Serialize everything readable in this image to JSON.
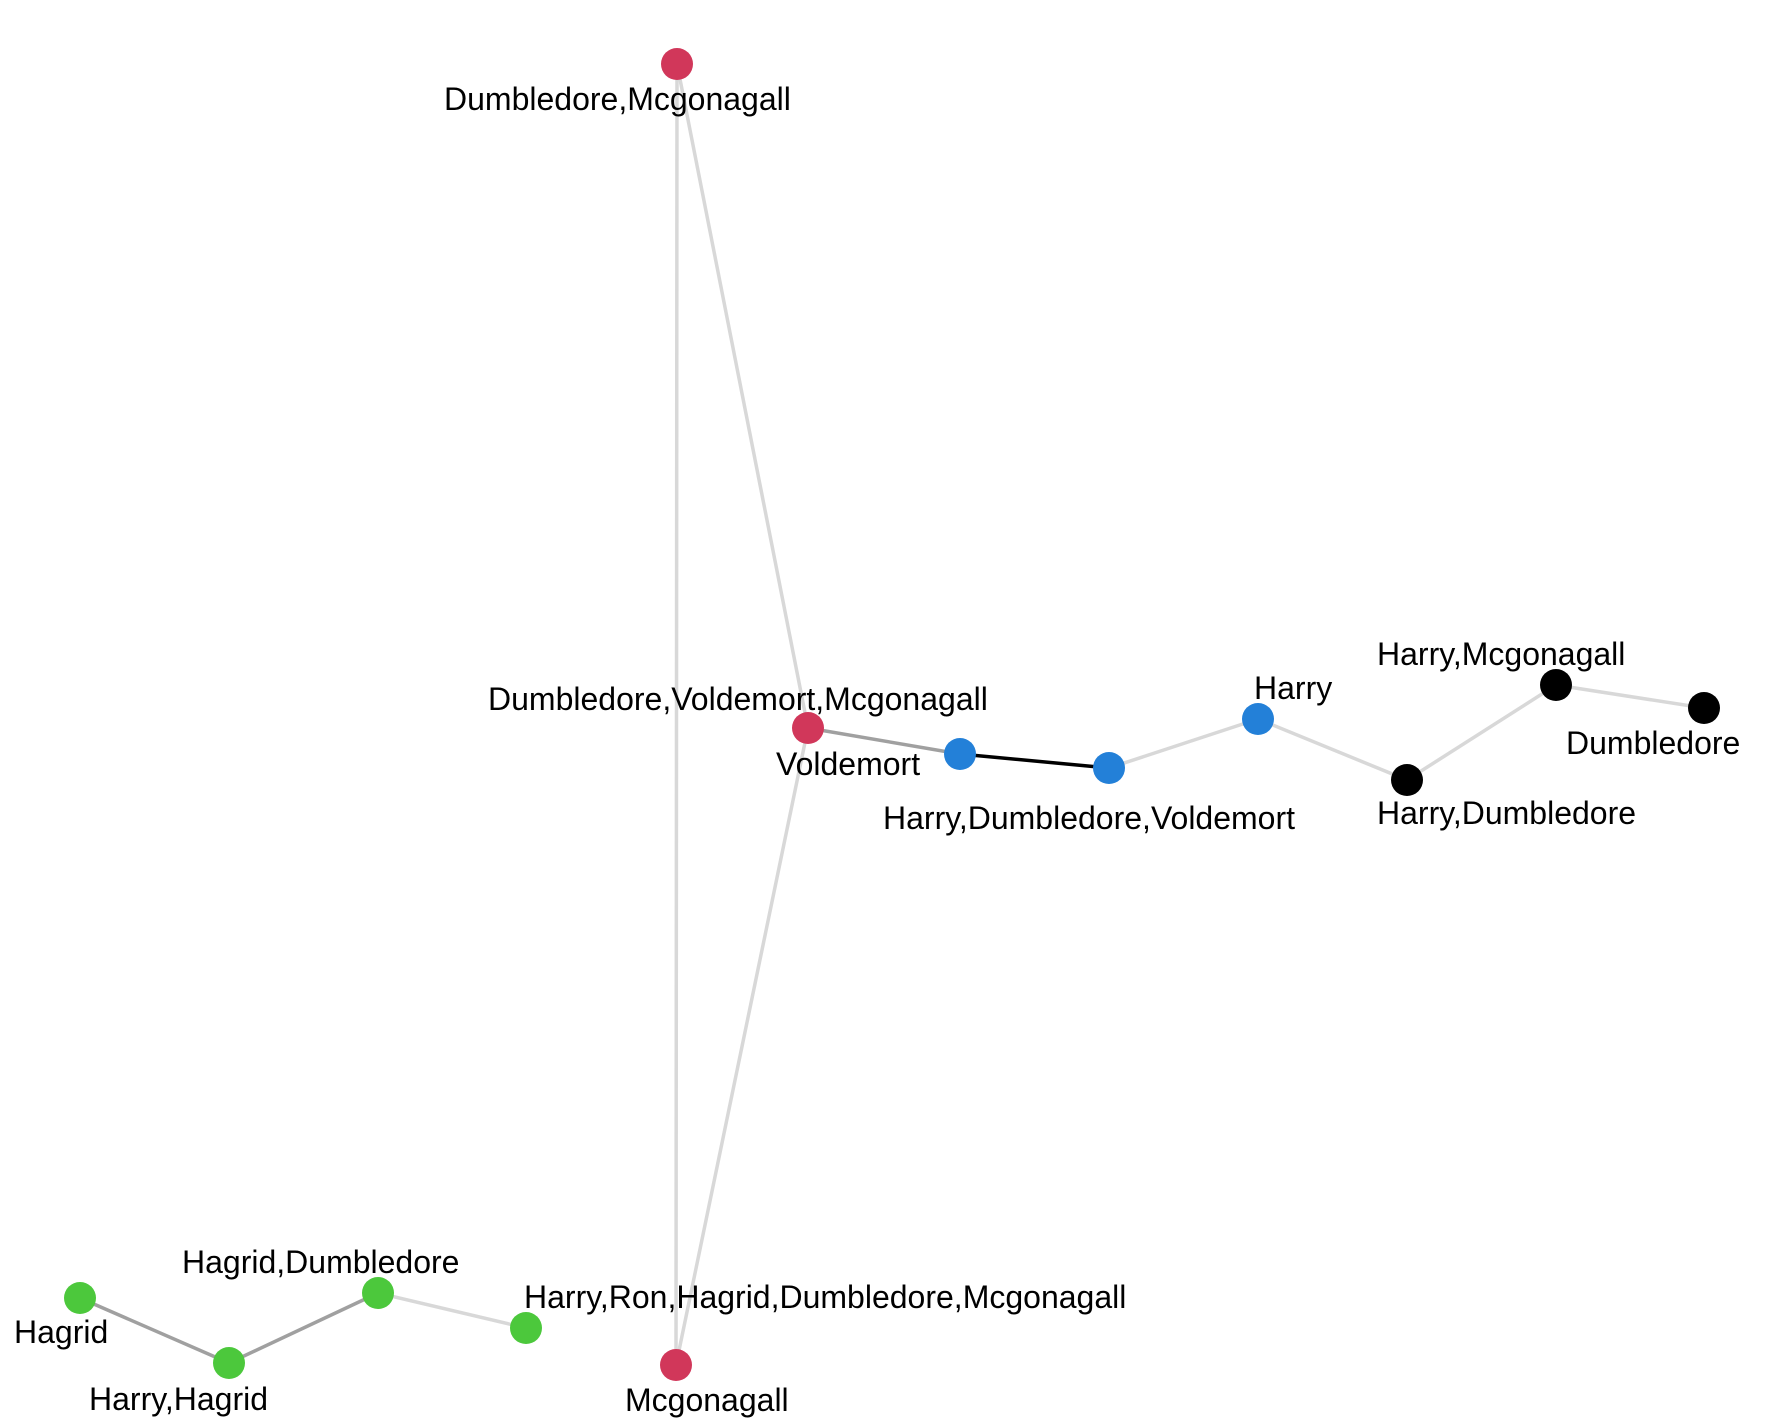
{
  "colors": {
    "red": "#D1375A",
    "blue": "#2380D8",
    "black": "#000000",
    "green": "#4CC83C",
    "edge_light": "#D8D8D8",
    "edge_mid": "#A0A0A0",
    "edge_dark": "#000000",
    "background": "#FFFFFF",
    "label": "#000000"
  },
  "graph": {
    "nodes": [
      {
        "id": "dumbledore_mcgonagall",
        "label": "Dumbledore,Mcgonagall",
        "group": "red"
      },
      {
        "id": "dumbledore_voldemort_mcgonagall",
        "label": "Dumbledore,Voldemort,Mcgonagall",
        "group": "red"
      },
      {
        "id": "mcgonagall",
        "label": "Mcgonagall",
        "group": "red"
      },
      {
        "id": "voldemort",
        "label": "Voldemort",
        "group": "blue"
      },
      {
        "id": "harry_dumbledore_voldemort",
        "label": "Harry,Dumbledore,Voldemort",
        "group": "blue"
      },
      {
        "id": "harry",
        "label": "Harry",
        "group": "blue"
      },
      {
        "id": "harry_dumbledore",
        "label": "Harry,Dumbledore",
        "group": "black"
      },
      {
        "id": "harry_mcgonagall",
        "label": "Harry,Mcgonagall",
        "group": "black"
      },
      {
        "id": "dumbledore",
        "label": "Dumbledore",
        "group": "black"
      },
      {
        "id": "hagrid",
        "label": "Hagrid",
        "group": "green"
      },
      {
        "id": "harry_hagrid",
        "label": "Harry,Hagrid",
        "group": "green"
      },
      {
        "id": "hagrid_dumbledore",
        "label": "Hagrid,Dumbledore",
        "group": "green"
      },
      {
        "id": "harry_ron_hagrid_dumbledore_mcgonagall",
        "label": "Harry,Ron,Hagrid,Dumbledore,Mcgonagall",
        "group": "green"
      }
    ],
    "edges": [
      {
        "source": "dumbledore_mcgonagall",
        "target": "dumbledore_voldemort_mcgonagall",
        "shade": "light"
      },
      {
        "source": "dumbledore_mcgonagall",
        "target": "mcgonagall",
        "shade": "light"
      },
      {
        "source": "dumbledore_voldemort_mcgonagall",
        "target": "mcgonagall",
        "shade": "light"
      },
      {
        "source": "dumbledore_voldemort_mcgonagall",
        "target": "voldemort",
        "shade": "mid"
      },
      {
        "source": "voldemort",
        "target": "harry_dumbledore_voldemort",
        "shade": "dark"
      },
      {
        "source": "harry_dumbledore_voldemort",
        "target": "harry",
        "shade": "light"
      },
      {
        "source": "harry",
        "target": "harry_dumbledore",
        "shade": "light"
      },
      {
        "source": "harry_dumbledore",
        "target": "harry_mcgonagall",
        "shade": "light"
      },
      {
        "source": "harry_mcgonagall",
        "target": "dumbledore",
        "shade": "light"
      },
      {
        "source": "hagrid",
        "target": "harry_hagrid",
        "shade": "mid"
      },
      {
        "source": "harry_hagrid",
        "target": "hagrid_dumbledore",
        "shade": "mid"
      },
      {
        "source": "hagrid_dumbledore",
        "target": "harry_ron_hagrid_dumbledore_mcgonagall",
        "shade": "light"
      }
    ]
  }
}
